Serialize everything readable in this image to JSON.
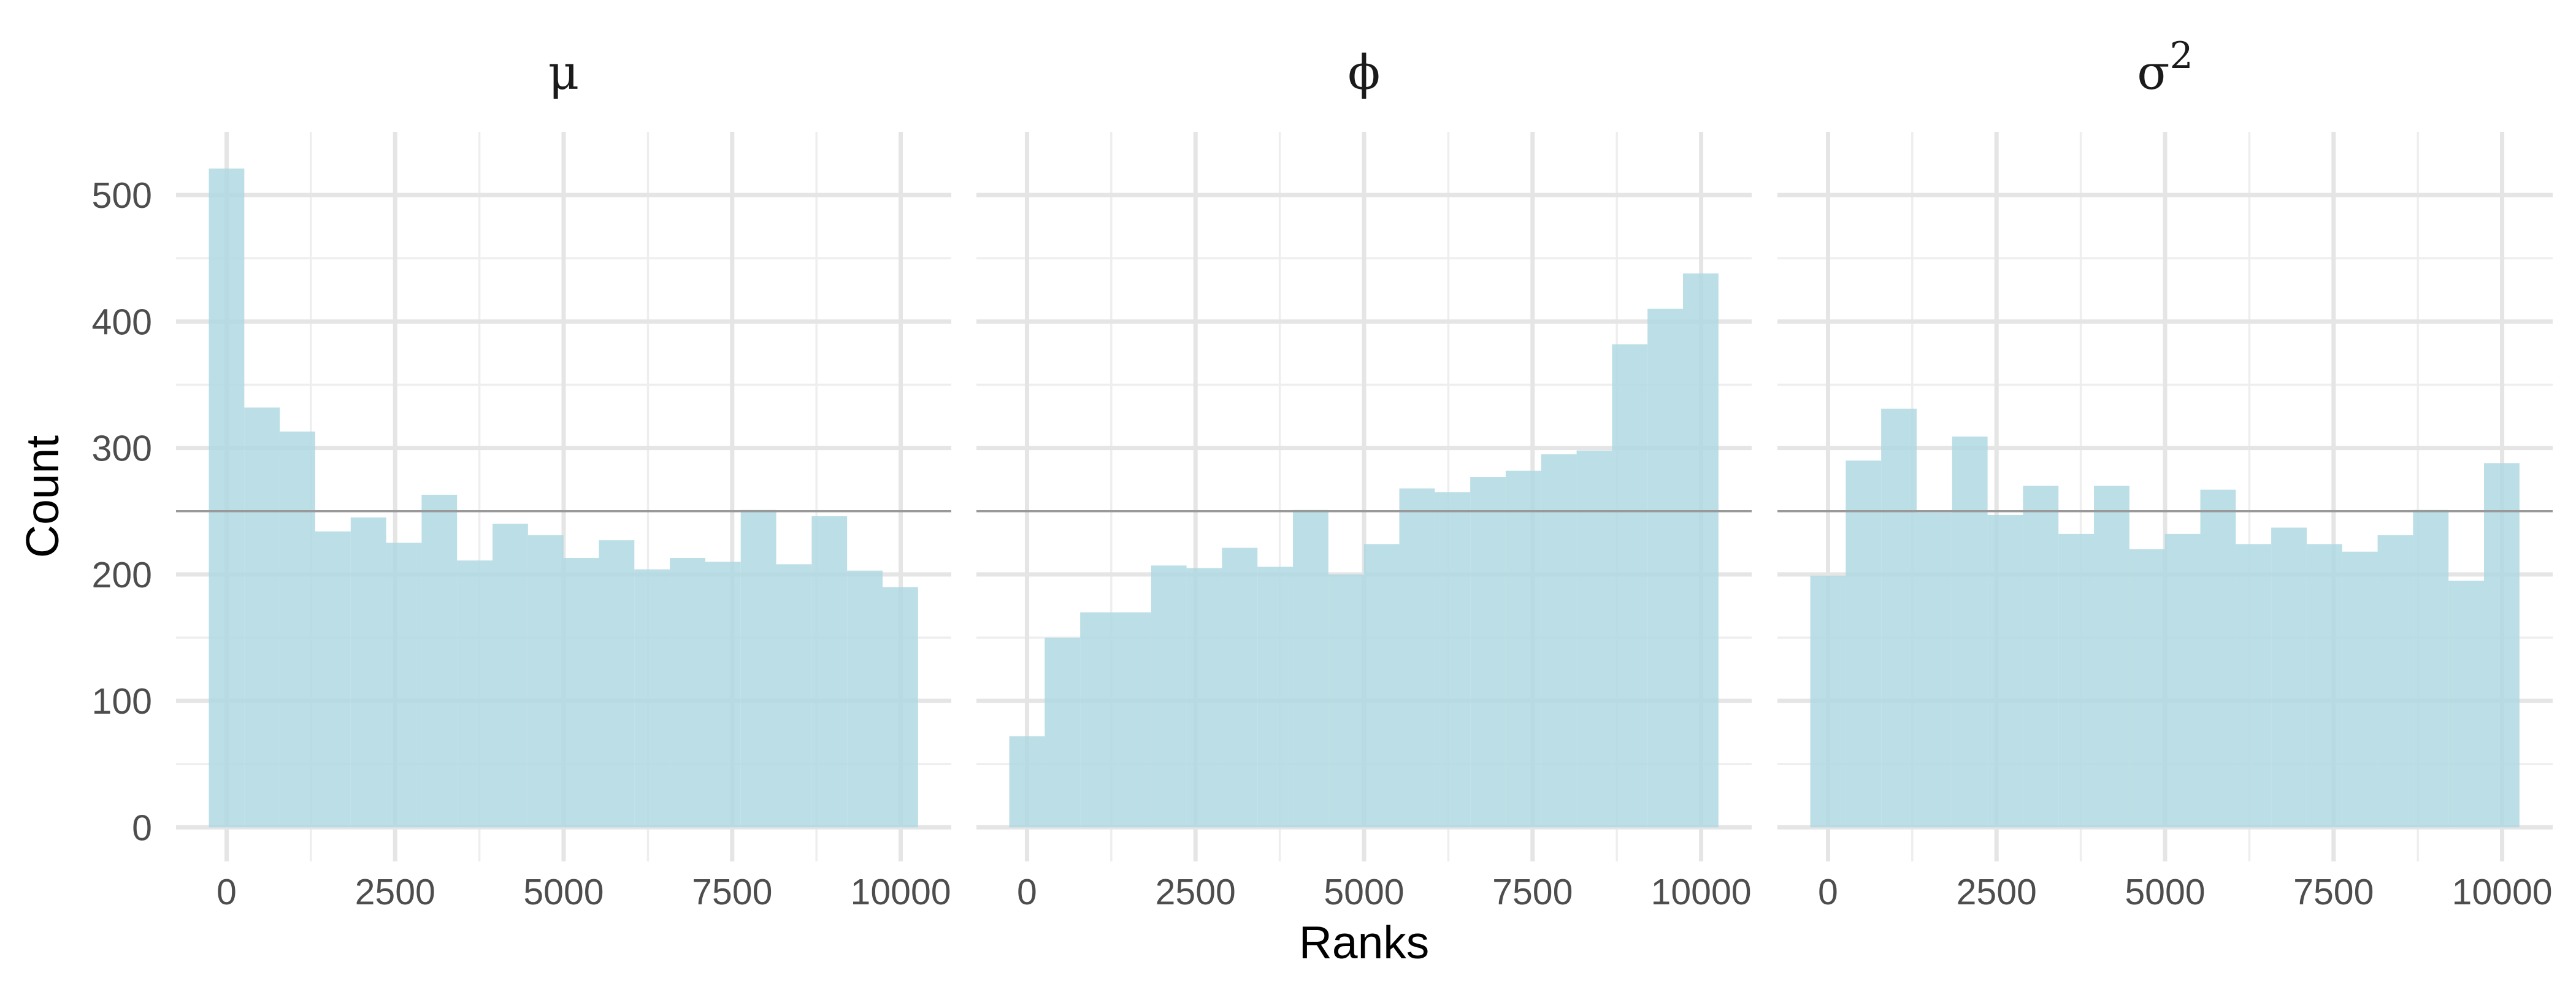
{
  "chart_data": {
    "type": "bar",
    "title": "",
    "xlabel": "Ranks",
    "ylabel": "Count",
    "xlim": [
      -750,
      10750
    ],
    "ylim": [
      -27,
      550
    ],
    "x_ticks": [
      "0",
      "2500",
      "5000",
      "7500",
      "10000"
    ],
    "y_ticks": [
      "0",
      "100",
      "200",
      "300",
      "400",
      "500"
    ],
    "reference_line": 250,
    "grid": true,
    "bar_color": "#b0d8e2",
    "bin_width": 526,
    "bin_start": -263,
    "panels": [
      {
        "strip": "μ",
        "strip_sup": "",
        "counts": [
          521,
          332,
          313,
          234,
          245,
          225,
          263,
          211,
          240,
          231,
          213,
          227,
          204,
          213,
          210,
          251,
          208,
          246,
          203,
          190
        ]
      },
      {
        "strip": "ϕ",
        "strip_sup": "",
        "counts": [
          72,
          150,
          170,
          170,
          207,
          205,
          221,
          206,
          251,
          200,
          224,
          268,
          265,
          277,
          282,
          295,
          298,
          382,
          410,
          438
        ]
      },
      {
        "strip": "σ",
        "strip_sup": "2",
        "counts": [
          199,
          290,
          331,
          249,
          309,
          247,
          270,
          232,
          270,
          220,
          232,
          267,
          224,
          237,
          224,
          218,
          231,
          251,
          195,
          288
        ]
      }
    ]
  }
}
